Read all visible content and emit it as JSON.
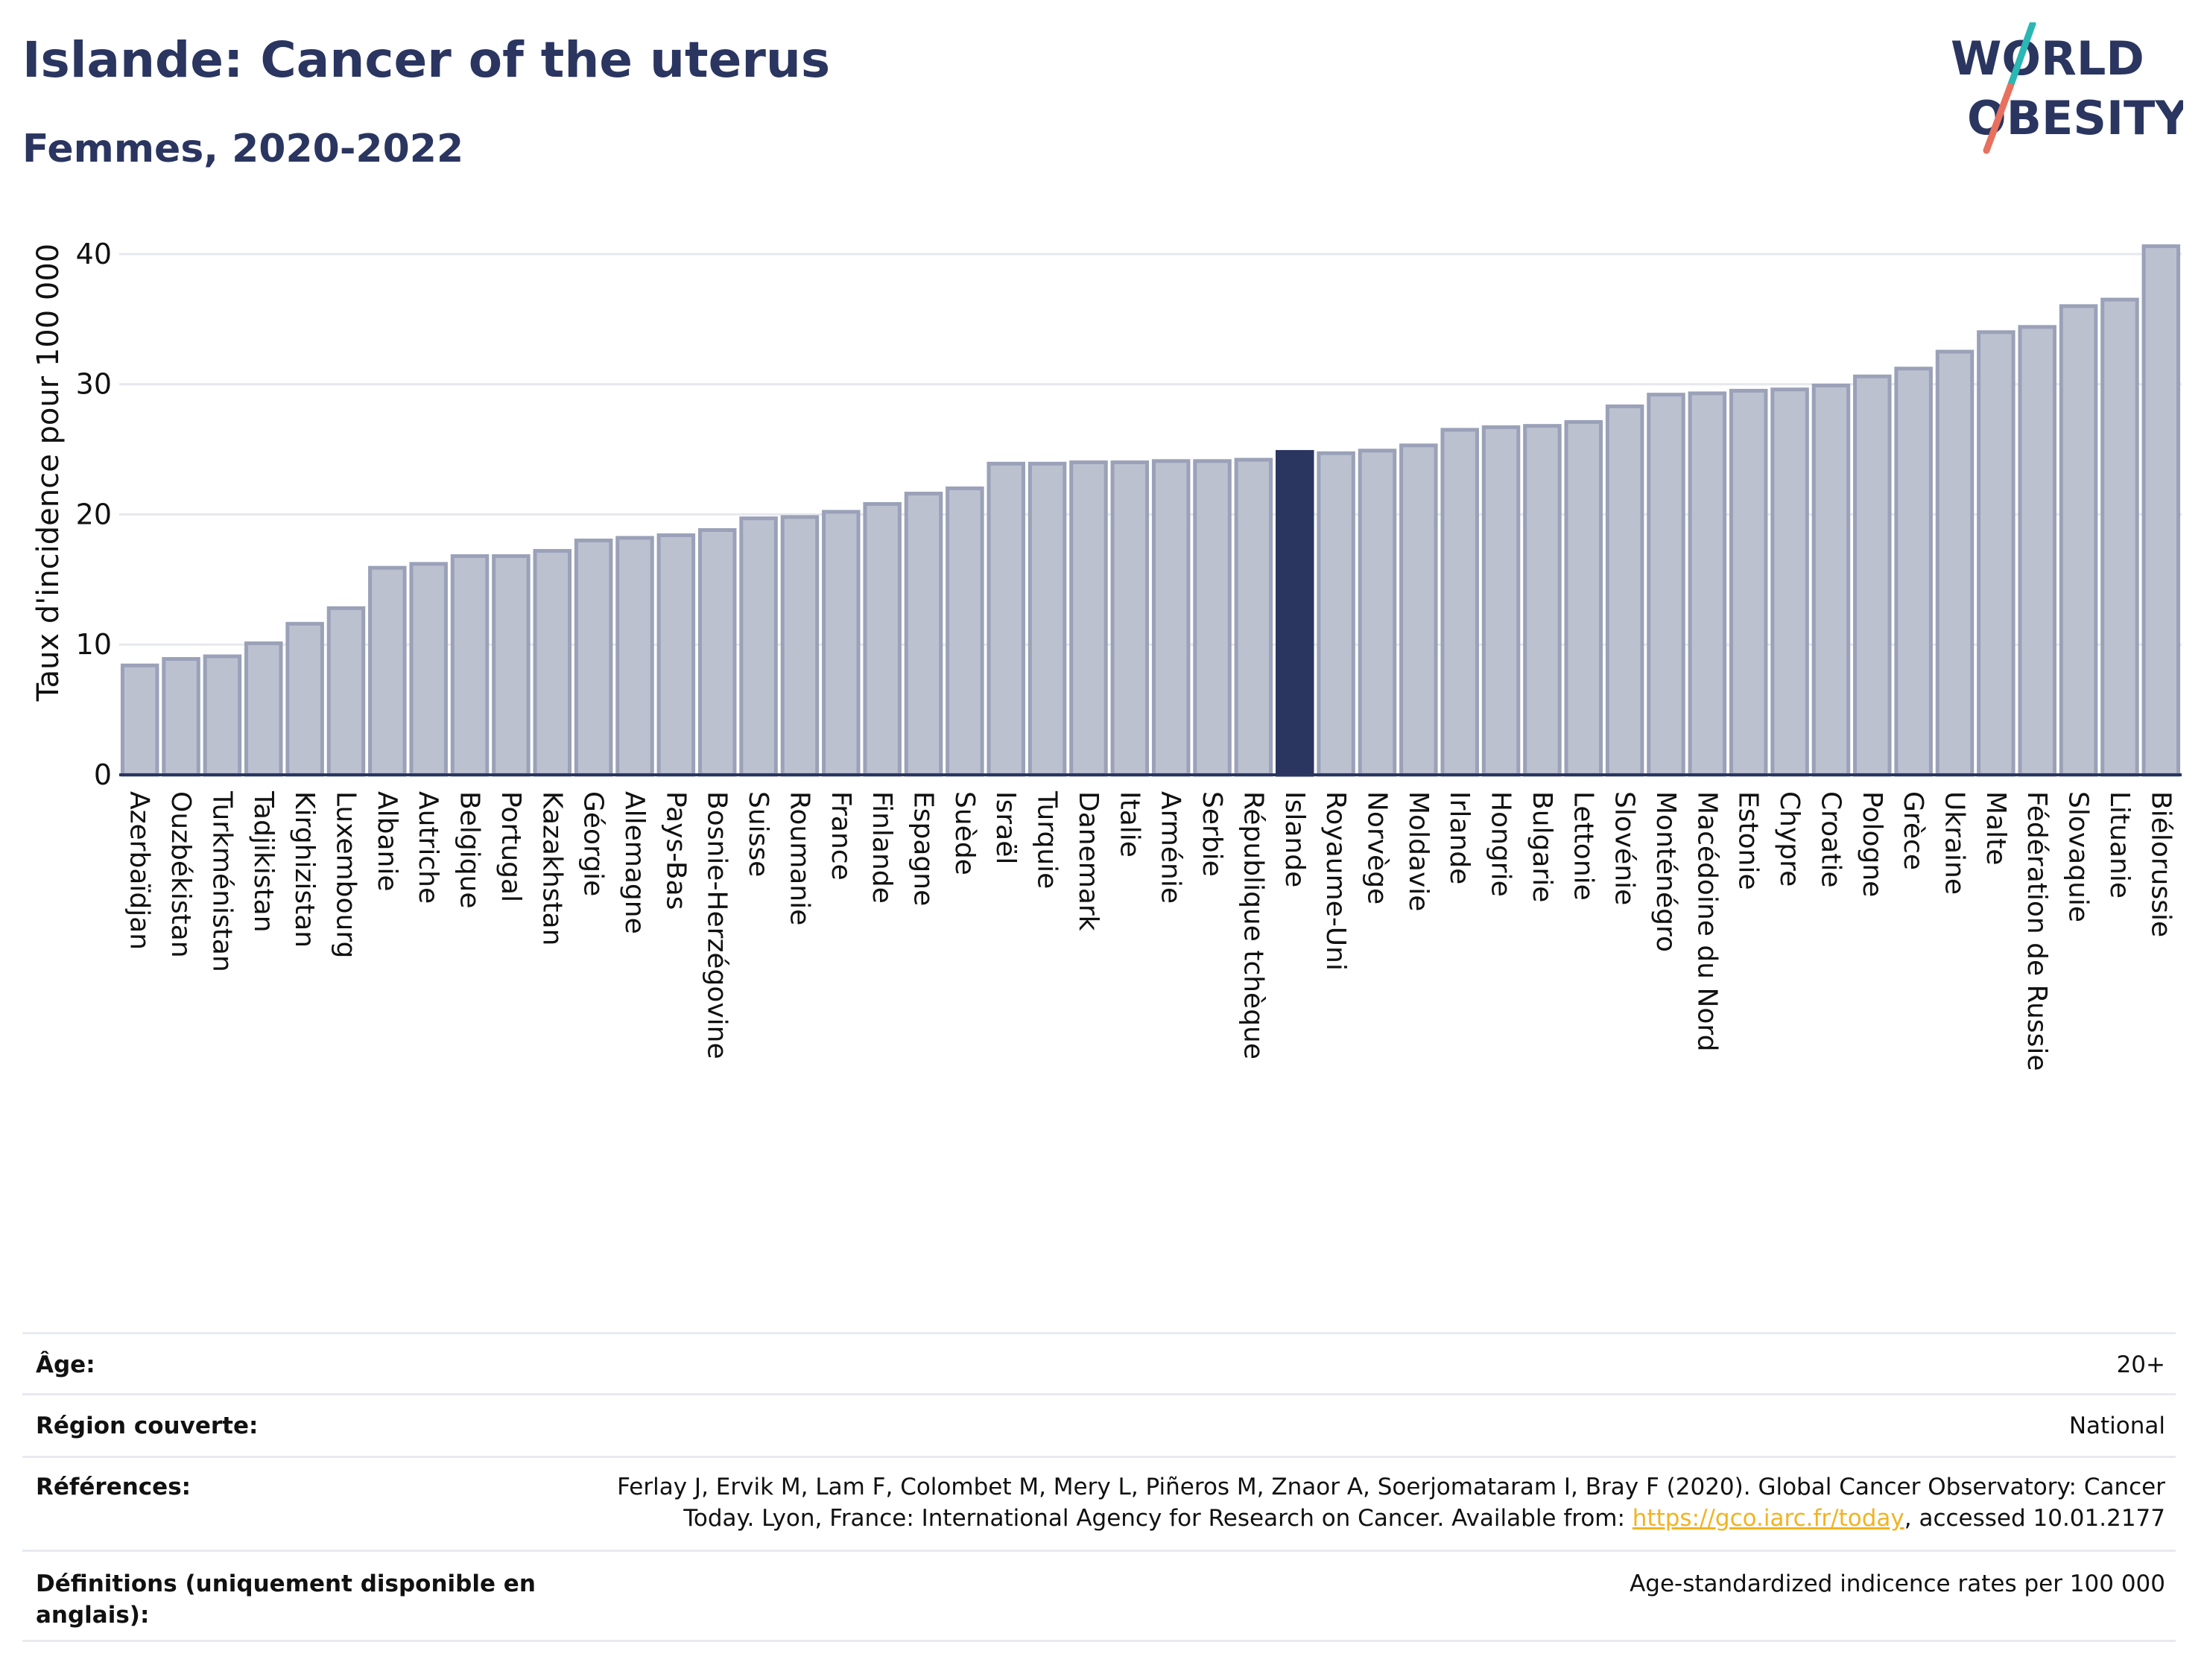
{
  "header": {
    "title": "Islande: Cancer of the uterus",
    "subtitle": "Femmes, 2020-2022"
  },
  "logo": {
    "line1": "WORLD",
    "line2": "OBESITY",
    "slash_color_top": "#2bb7b3",
    "slash_color_bottom": "#e8705e",
    "text_color": "#2a3560"
  },
  "colors": {
    "bar": "#bcc1d0",
    "bar_border": "#9aa1b8",
    "highlight": "#2a3560",
    "grid": "#e6e8ee",
    "axis": "#2a3560"
  },
  "chart_data": {
    "type": "bar",
    "ylabel": "Taux d'incidence pour 100 000",
    "ylim": [
      0,
      42
    ],
    "yticks": [
      0,
      10,
      20,
      30,
      40
    ],
    "highlight": "Islande",
    "grid": true,
    "categories": [
      "Azerbaïdjan",
      "Ouzbékistan",
      "Turkménistan",
      "Tadjikistan",
      "Kirghizistan",
      "Luxembourg",
      "Albanie",
      "Autriche",
      "Belgique",
      "Portugal",
      "Kazakhstan",
      "Géorgie",
      "Allemagne",
      "Pays-Bas",
      "Bosnie-Herzégovine",
      "Suisse",
      "Roumanie",
      "France",
      "Finlande",
      "Espagne",
      "Suède",
      "Israël",
      "Turquie",
      "Danemark",
      "Italie",
      "Arménie",
      "Serbie",
      "République tchèque",
      "Islande",
      "Royaume-Uni",
      "Norvège",
      "Moldavie",
      "Irlande",
      "Hongrie",
      "Bulgarie",
      "Lettonie",
      "Slovénie",
      "Monténégro",
      "Macédoine du Nord",
      "Estonie",
      "Chypre",
      "Croatie",
      "Pologne",
      "Grèce",
      "Ukraine",
      "Malte",
      "Fédération de Russie",
      "Slovaquie",
      "Lituanie",
      "Biélorussie"
    ],
    "values": [
      8.4,
      8.9,
      9.1,
      10.1,
      11.6,
      12.8,
      15.9,
      16.2,
      16.8,
      16.8,
      17.2,
      18.0,
      18.2,
      18.4,
      18.8,
      19.7,
      19.8,
      20.2,
      20.8,
      21.6,
      22.0,
      23.9,
      23.9,
      24.0,
      24.0,
      24.1,
      24.1,
      24.2,
      24.8,
      24.7,
      24.9,
      25.3,
      26.5,
      26.7,
      26.8,
      27.1,
      28.3,
      29.2,
      29.3,
      29.5,
      29.6,
      29.9,
      30.6,
      31.2,
      32.5,
      34.0,
      34.4,
      36.0,
      36.5,
      40.6
    ]
  },
  "info_table": [
    {
      "label": "Âge:",
      "value": "20+"
    },
    {
      "label": "Région couverte:",
      "value": "National"
    },
    {
      "label": "Références:",
      "value_pre": "Ferlay J, Ervik M, Lam F, Colombet M, Mery L, Piñeros M, Znaor A, Soerjomataram I, Bray F (2020). Global Cancer Observatory: Cancer Today. Lyon, France: International Agency for Research on Cancer. Available from: ",
      "link": "https://gco.iarc.fr/today",
      "value_post": ", accessed 10.01.2177"
    },
    {
      "label": "Définitions (uniquement disponible en anglais):",
      "value": "Age-standardized indicence rates per 100 000"
    }
  ]
}
